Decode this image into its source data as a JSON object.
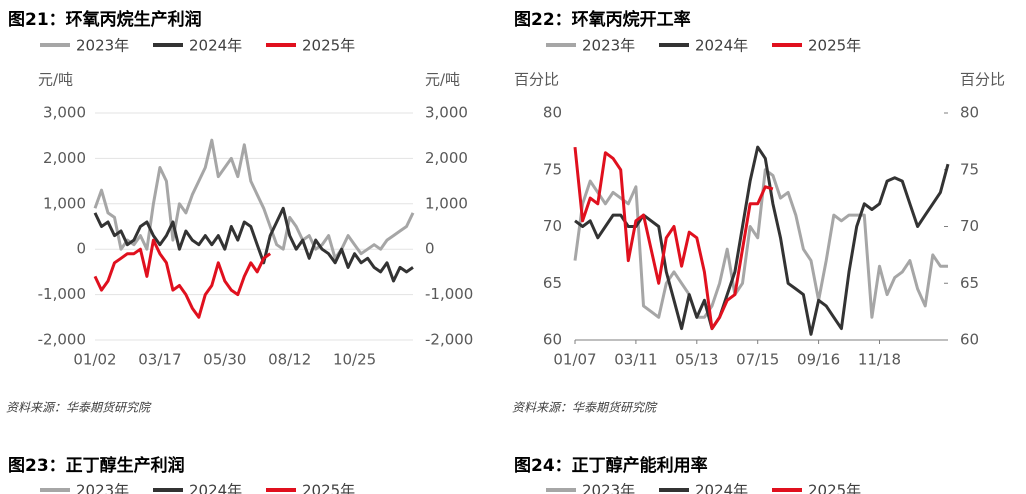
{
  "chart_data": [
    {
      "type": "line",
      "title": "图21：环氧丙烷生产利润",
      "ylabel": "元/吨",
      "y2label": "元/吨",
      "source": "资料来源：华泰期货研究院",
      "grid": true,
      "categories": [
        "01/02",
        null,
        null,
        null,
        null,
        null,
        null,
        null,
        null,
        null,
        "03/17",
        null,
        null,
        null,
        null,
        null,
        null,
        null,
        null,
        null,
        "05/30",
        null,
        null,
        null,
        null,
        null,
        null,
        null,
        null,
        null,
        "08/12",
        null,
        null,
        null,
        null,
        null,
        null,
        null,
        null,
        null,
        "10/25",
        null,
        null,
        null,
        null,
        null,
        null,
        null,
        null,
        null
      ],
      "ylim": [
        -2000,
        3000
      ],
      "yticks": [
        {
          "value": -2000,
          "label": "-2,000"
        },
        {
          "value": -1000,
          "label": "-1,000"
        },
        0,
        {
          "value": 1000,
          "label": "1,000"
        },
        {
          "value": 2000,
          "label": "2,000"
        },
        {
          "value": 3000,
          "label": "3,000"
        }
      ],
      "y2lim": [
        -2000,
        3000
      ],
      "y2ticks": [
        {
          "value": -2000,
          "label": "-2,000"
        },
        {
          "value": -1000,
          "label": "-1,000"
        },
        0,
        {
          "value": 1000,
          "label": "1,000"
        },
        {
          "value": 2000,
          "label": "2,000"
        },
        {
          "value": 3000,
          "label": "3,000"
        }
      ],
      "series": [
        {
          "name": "2023年",
          "color": "#a6a6a6",
          "values": [
            900,
            1300,
            800,
            700,
            0,
            200,
            100,
            300,
            0,
            1000,
            1800,
            1500,
            200,
            1000,
            800,
            1200,
            1500,
            1800,
            2400,
            1600,
            1800,
            2000,
            1600,
            2300,
            1500,
            1200,
            900,
            500,
            100,
            0,
            700,
            500,
            200,
            300,
            0,
            100,
            300,
            -200,
            0,
            300,
            100,
            -100,
            0,
            100,
            0,
            200,
            300,
            400,
            500,
            800
          ]
        },
        {
          "name": "2024年",
          "color": "#333333",
          "values": [
            800,
            500,
            600,
            300,
            400,
            100,
            200,
            500,
            600,
            300,
            100,
            300,
            600,
            0,
            400,
            200,
            100,
            300,
            100,
            300,
            0,
            500,
            200,
            600,
            500,
            100,
            -300,
            300,
            600,
            900,
            300,
            0,
            200,
            -200,
            200,
            0,
            -100,
            -300,
            0,
            -400,
            -100,
            -300,
            -200,
            -400,
            -500,
            -300,
            -700,
            -400,
            -500,
            -400
          ]
        },
        {
          "name": "2025年",
          "color": "#e0101e",
          "values": [
            -600,
            -900,
            -700,
            -300,
            -200,
            -100,
            -100,
            0,
            -600,
            200,
            -100,
            -300,
            -900,
            -800,
            -1000,
            -1300,
            -1500,
            -1000,
            -800,
            -300,
            -700,
            -900,
            -1000,
            -600,
            -300,
            -500,
            -200,
            -100,
            null,
            null,
            null,
            null,
            null,
            null,
            null,
            null,
            null,
            null,
            null,
            null,
            null,
            null,
            null,
            null,
            null,
            null,
            null,
            null,
            null,
            null
          ]
        }
      ]
    },
    {
      "type": "line",
      "title": "图22：环氧丙烷开工率",
      "ylabel": "百分比",
      "y2label": "百分比",
      "source": "资料来源：华泰期货研究院",
      "grid": false,
      "categories": [
        "01/07",
        null,
        null,
        null,
        null,
        null,
        null,
        null,
        "03/11",
        null,
        null,
        null,
        null,
        null,
        null,
        null,
        "05/13",
        null,
        null,
        null,
        null,
        null,
        null,
        null,
        "07/15",
        null,
        null,
        null,
        null,
        null,
        null,
        null,
        "09/16",
        null,
        null,
        null,
        null,
        null,
        null,
        null,
        "11/18",
        null,
        null,
        null,
        null,
        null,
        null,
        null,
        null,
        null
      ],
      "ylim": [
        60,
        80
      ],
      "yticks": [
        60,
        65,
        70,
        75,
        80
      ],
      "y2lim": [
        60,
        80
      ],
      "y2ticks": [
        60,
        65,
        70,
        75,
        80
      ],
      "series": [
        {
          "name": "2023年",
          "color": "#a6a6a6",
          "values": [
            67,
            72,
            74,
            73,
            72,
            73,
            72.5,
            72,
            73.5,
            63,
            62.5,
            62,
            65,
            66,
            65,
            64,
            62,
            62,
            63,
            65,
            68,
            64,
            65,
            70,
            69,
            75,
            74.5,
            72.5,
            73,
            71,
            68,
            67,
            63.5,
            67,
            71,
            70.5,
            71,
            71,
            71,
            62,
            66.5,
            64,
            65.5,
            66,
            67,
            64.5,
            63,
            67.5,
            66.5,
            66.5
          ]
        },
        {
          "name": "2024年",
          "color": "#333333",
          "values": [
            70.5,
            70,
            70.5,
            69,
            70,
            71,
            71,
            70,
            70,
            71,
            70.5,
            70,
            66,
            63.5,
            61,
            64,
            62,
            63.5,
            61,
            62,
            64,
            66,
            70,
            74,
            77,
            76,
            72,
            69,
            65,
            64.5,
            64,
            60.5,
            63.5,
            63,
            62,
            61,
            66,
            70,
            72,
            71.5,
            72,
            74,
            74.3,
            74,
            72,
            70,
            71,
            72,
            73,
            75.5
          ]
        },
        {
          "name": "2025年",
          "color": "#e0101e",
          "values": [
            77,
            70.5,
            72.5,
            72,
            76.5,
            76,
            75,
            67,
            70.5,
            71,
            68,
            65,
            69,
            70,
            66.5,
            69.5,
            69,
            66,
            61,
            62,
            63.5,
            64,
            68,
            72,
            72,
            73.5,
            73.3,
            null,
            null,
            null,
            null,
            null,
            null,
            null,
            null,
            null,
            null,
            null,
            null,
            null,
            null,
            null,
            null,
            null,
            null,
            null,
            null,
            null,
            null,
            null
          ]
        }
      ]
    }
  ],
  "next_figures": [
    {
      "title": "图23：正丁醇生产利润",
      "legend": [
        "2023年",
        "2024年",
        "2025年"
      ]
    },
    {
      "title": "图24：正丁醇产能利用率",
      "legend": [
        "2023年",
        "2024年",
        "2025年"
      ]
    }
  ]
}
